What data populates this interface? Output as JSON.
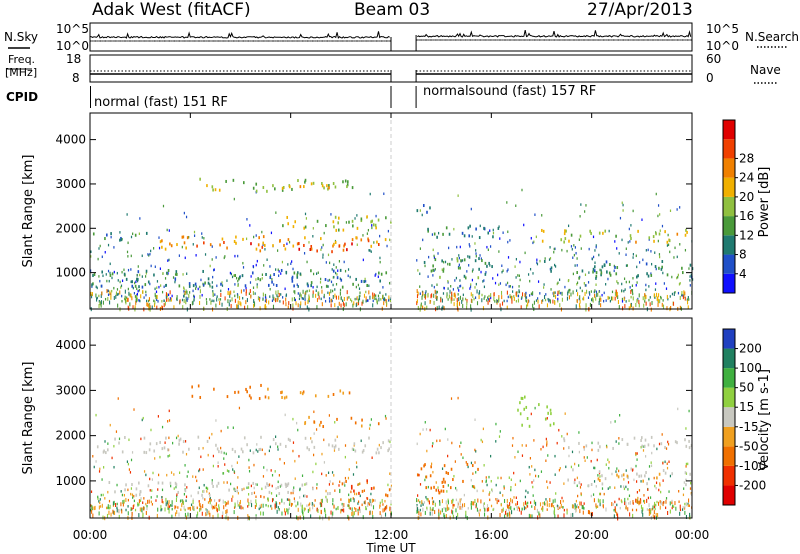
{
  "header": {
    "title": "Adak West (fitACF)",
    "beam": "Beam 03",
    "date": "27/Apr/2013"
  },
  "strips": {
    "nsky_label": "N.Sky",
    "nsky_ticks": [
      "10^5",
      "10^0"
    ],
    "nsearch_label": "N.Search",
    "nsearch_ticks": [
      "10^5",
      "10^0"
    ],
    "freq_label": [
      "Freq.",
      "[MHz]"
    ],
    "freq_ticks": [
      "18",
      "8"
    ],
    "nave_label": "Nave",
    "nave_ticks": [
      "60",
      "0"
    ],
    "cpid_label": "CPID",
    "cpid_segments": [
      {
        "label": "normal (fast) 151 RF",
        "start_hour": 0,
        "end_hour": 12
      },
      {
        "label": "normalsound (fast) 157 RF",
        "start_hour": 13,
        "end_hour": 24
      }
    ],
    "data_gap_hours": [
      12,
      13
    ]
  },
  "x_axis": {
    "label": "Time UT",
    "ticks": [
      "00:00",
      "04:00",
      "08:00",
      "12:00",
      "16:00",
      "20:00",
      "00:00"
    ],
    "range_hours": [
      0,
      24
    ]
  },
  "y_axis": {
    "label": "Slant Range [km]",
    "ticks": [
      1000,
      2000,
      3000,
      4000
    ],
    "range_km": [
      180,
      4600
    ]
  },
  "power_colorbar": {
    "label": "Power [dB]",
    "ticks": [
      "4",
      "8",
      "12",
      "16",
      "20",
      "24",
      "28"
    ],
    "colors": [
      "#1010ff",
      "#2050c8",
      "#207a70",
      "#4a9a3a",
      "#90c040",
      "#f0b000",
      "#f08000",
      "#f04000",
      "#e00000"
    ]
  },
  "velocity_colorbar": {
    "label": "Velocity [m s-1]",
    "ticks": [
      "200",
      "100",
      "50",
      "15",
      "-15",
      "-50",
      "-100",
      "-200"
    ],
    "colors": [
      "#2040c0",
      "#208060",
      "#40b040",
      "#90d040",
      "#c8c8c0",
      "#f0a020",
      "#f07000",
      "#f03000",
      "#e00000"
    ]
  },
  "chart_data": [
    {
      "type": "heatmap",
      "title": "",
      "xlabel": "Time UT",
      "ylabel": "Slant Range [km]",
      "colorbar_label": "Power [dB]",
      "x_range_hours": [
        0,
        24
      ],
      "y_range_km": [
        180,
        4600
      ],
      "bands": [
        {
          "t0": 0.0,
          "t1": 2.5,
          "r0": 1750,
          "r1": 1950,
          "power_db": 10
        },
        {
          "t0": 2.5,
          "t1": 12.0,
          "r0": 1550,
          "r1": 1850,
          "power_db": 22
        },
        {
          "t0": 5.5,
          "t1": 10.5,
          "r0": 1500,
          "r1": 1700,
          "power_db": 27
        },
        {
          "t0": 7.0,
          "t1": 12.0,
          "r0": 1950,
          "r1": 2300,
          "power_db": 16
        },
        {
          "t0": 4.0,
          "t1": 10.5,
          "r0": 2850,
          "r1": 3150,
          "power_db": 14
        },
        {
          "t0": 7.5,
          "t1": 10.5,
          "r0": 2880,
          "r1": 3050,
          "power_db": 20
        },
        {
          "t0": 0.0,
          "t1": 12.0,
          "r0": 700,
          "r1": 1100,
          "power_db": 9
        },
        {
          "t0": 13.0,
          "t1": 16.0,
          "r0": 900,
          "r1": 1400,
          "power_db": 12
        },
        {
          "t0": 13.0,
          "t1": 16.5,
          "r0": 1800,
          "r1": 2100,
          "power_db": 10
        },
        {
          "t0": 17.5,
          "t1": 24.0,
          "r0": 1700,
          "r1": 2000,
          "power_db": 18
        },
        {
          "t0": 18.0,
          "t1": 24.0,
          "r0": 900,
          "r1": 1300,
          "power_db": 10
        },
        {
          "t0": 13.0,
          "t1": 14.0,
          "r0": 2350,
          "r1": 2550,
          "power_db": 8
        }
      ]
    },
    {
      "type": "heatmap",
      "title": "",
      "xlabel": "Time UT",
      "ylabel": "Slant Range [km]",
      "colorbar_label": "Velocity [m s-1]",
      "x_range_hours": [
        0,
        24
      ],
      "y_range_km": [
        180,
        4600
      ],
      "bands": [
        {
          "t0": 0.0,
          "t1": 12.0,
          "r0": 1650,
          "r1": 2000,
          "velocity": 0
        },
        {
          "t0": 4.0,
          "t1": 7.0,
          "r0": 2850,
          "r1": 3150,
          "velocity": -60
        },
        {
          "t0": 7.0,
          "t1": 10.5,
          "r0": 2850,
          "r1": 3100,
          "velocity": -40
        },
        {
          "t0": 8.5,
          "t1": 11.5,
          "r0": 2200,
          "r1": 2450,
          "velocity": -50
        },
        {
          "t0": 10.0,
          "t1": 12.0,
          "r0": 700,
          "r1": 1050,
          "velocity": -100
        },
        {
          "t0": 13.0,
          "t1": 15.5,
          "r0": 750,
          "r1": 1400,
          "velocity": -80
        },
        {
          "t0": 0.0,
          "t1": 10.0,
          "r0": 700,
          "r1": 1000,
          "velocity": 0
        },
        {
          "t0": 17.0,
          "t1": 18.5,
          "r0": 2200,
          "r1": 2900,
          "velocity": 30
        },
        {
          "t0": 18.5,
          "t1": 24.0,
          "r0": 1700,
          "r1": 2000,
          "velocity": 0
        },
        {
          "t0": 19.0,
          "t1": 24.0,
          "r0": 900,
          "r1": 1300,
          "velocity": -10
        }
      ]
    }
  ]
}
